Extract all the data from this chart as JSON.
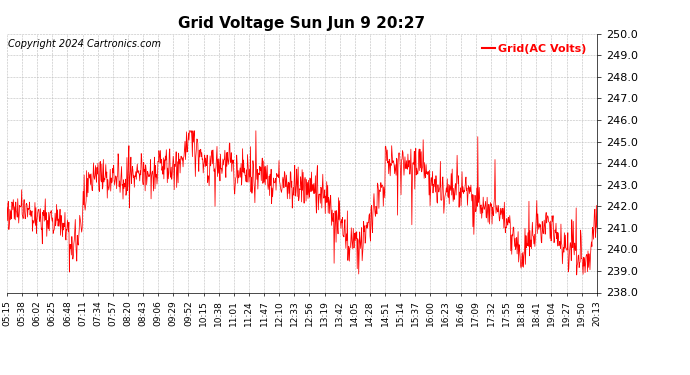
{
  "title": "Grid Voltage Sun Jun 9 20:27",
  "legend_label": "Grid(AC Volts)",
  "copyright": "Copyright 2024 Cartronics.com",
  "legend_color": "#ff0000",
  "line_color": "#ff0000",
  "background_color": "#ffffff",
  "grid_color": "#bbbbbb",
  "ylim": [
    238.0,
    250.0
  ],
  "yticks": [
    238.0,
    239.0,
    240.0,
    241.0,
    242.0,
    243.0,
    244.0,
    245.0,
    246.0,
    247.0,
    248.0,
    249.0,
    250.0
  ],
  "xtick_labels": [
    "05:15",
    "05:38",
    "06:02",
    "06:25",
    "06:48",
    "07:11",
    "07:34",
    "07:57",
    "08:20",
    "08:43",
    "09:06",
    "09:29",
    "09:52",
    "10:15",
    "10:38",
    "11:01",
    "11:24",
    "11:47",
    "12:10",
    "12:33",
    "12:56",
    "13:19",
    "13:42",
    "14:05",
    "14:28",
    "14:51",
    "15:14",
    "15:37",
    "16:00",
    "16:23",
    "16:46",
    "17:09",
    "17:32",
    "17:55",
    "18:18",
    "18:41",
    "19:04",
    "19:27",
    "19:50",
    "20:13"
  ],
  "title_fontsize": 11,
  "tick_fontsize": 6.5,
  "copyright_fontsize": 7,
  "legend_fontsize": 8,
  "ytick_fontsize": 8
}
